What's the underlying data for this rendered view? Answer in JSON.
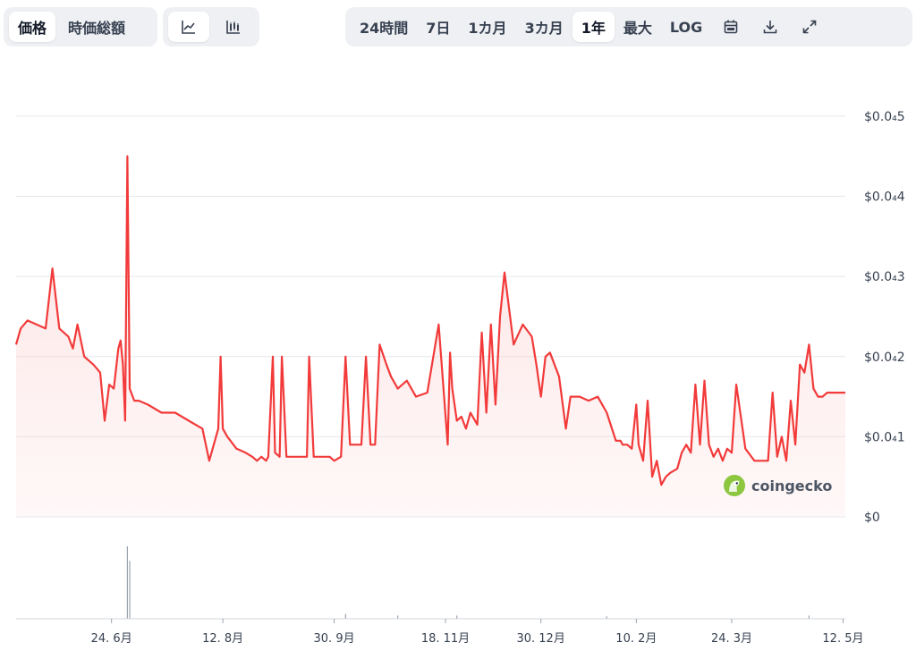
{
  "toolbar": {
    "metric_tabs": [
      {
        "label": "価格",
        "active": true
      },
      {
        "label": "時価総額",
        "active": false
      }
    ],
    "chart_type_icons": [
      "line-chart-icon",
      "candlestick-chart-icon"
    ],
    "range_tabs": [
      {
        "label": "24時間",
        "active": false
      },
      {
        "label": "7日",
        "active": false
      },
      {
        "label": "1カ月",
        "active": false
      },
      {
        "label": "3カ月",
        "active": false
      },
      {
        "label": "1年",
        "active": true
      },
      {
        "label": "最大",
        "active": false
      },
      {
        "label": "LOG",
        "active": false
      }
    ],
    "action_icons": [
      "calendar-icon",
      "download-icon",
      "fullscreen-icon"
    ]
  },
  "watermark": {
    "text": "coingecko"
  },
  "colors": {
    "line": "#f23a3a",
    "fill": "#fde8e8",
    "grid": "#e5e7eb",
    "accent_bg": "#eef0f3"
  },
  "chart_data": {
    "type": "line",
    "title": "",
    "xlabel": "",
    "ylabel": "",
    "y_tick_labels": [
      {
        "value": 5e-05,
        "label": "$0.0₄5"
      },
      {
        "value": 4e-05,
        "label": "$0.0₄4"
      },
      {
        "value": 3e-05,
        "label": "$0.0₄3"
      },
      {
        "value": 2e-05,
        "label": "$0.0₄2"
      },
      {
        "value": 1e-05,
        "label": "$0.0₄1"
      },
      {
        "value": 0,
        "label": "$0"
      }
    ],
    "ylim": [
      0,
      5.2e-05
    ],
    "x_tick_labels": [
      "24. 6月",
      "12. 8月",
      "30. 9月",
      "18. 11月",
      "30. 12月",
      "10. 2月",
      "24. 3月",
      "12. 5月"
    ],
    "x_tick_dates": [
      "2024-06-24",
      "2024-08-12",
      "2024-09-30",
      "2024-11-18",
      "2024-12-30",
      "2025-02-10",
      "2025-03-24",
      "2025-05-12"
    ],
    "x_range": [
      "2024-05-13",
      "2025-05-13"
    ],
    "series": [
      {
        "x": [
          "2024-05-13",
          "2024-05-15",
          "2024-05-18",
          "2024-05-22",
          "2024-05-26",
          "2024-05-29",
          "2024-06-01",
          "2024-06-05",
          "2024-06-07",
          "2024-06-09",
          "2024-06-12",
          "2024-06-14",
          "2024-06-16",
          "2024-06-19",
          "2024-06-21",
          "2024-06-23",
          "2024-06-25",
          "2024-06-27",
          "2024-06-28",
          "2024-06-29",
          "2024-06-30",
          "2024-07-01",
          "2024-07-02",
          "2024-07-04",
          "2024-07-06",
          "2024-07-10",
          "2024-07-16",
          "2024-07-22",
          "2024-07-28",
          "2024-08-03",
          "2024-08-06",
          "2024-08-10",
          "2024-08-11",
          "2024-08-12",
          "2024-08-14",
          "2024-08-18",
          "2024-08-22",
          "2024-08-25",
          "2024-08-27",
          "2024-08-29",
          "2024-08-31",
          "2024-09-01",
          "2024-09-03",
          "2024-09-04",
          "2024-09-06",
          "2024-09-07",
          "2024-09-09",
          "2024-09-16",
          "2024-09-18",
          "2024-09-19",
          "2024-09-21",
          "2024-09-28",
          "2024-09-30",
          "2024-10-03",
          "2024-10-05",
          "2024-10-07",
          "2024-10-12",
          "2024-10-14",
          "2024-10-16",
          "2024-10-18",
          "2024-10-20",
          "2024-10-23",
          "2024-10-25",
          "2024-10-28",
          "2024-11-01",
          "2024-11-05",
          "2024-11-10",
          "2024-11-15",
          "2024-11-19",
          "2024-11-20",
          "2024-11-21",
          "2024-11-23",
          "2024-11-25",
          "2024-11-27",
          "2024-11-29",
          "2024-12-02",
          "2024-12-04",
          "2024-12-06",
          "2024-12-08",
          "2024-12-10",
          "2024-12-12",
          "2024-12-14",
          "2024-12-18",
          "2024-12-22",
          "2024-12-26",
          "2024-12-28",
          "2024-12-30",
          "2025-01-01",
          "2025-01-03",
          "2025-01-07",
          "2025-01-10",
          "2025-01-12",
          "2025-01-16",
          "2025-01-20",
          "2025-01-24",
          "2025-01-28",
          "2025-02-01",
          "2025-02-03",
          "2025-02-04",
          "2025-02-06",
          "2025-02-08",
          "2025-02-10",
          "2025-02-11",
          "2025-02-13",
          "2025-02-15",
          "2025-02-17",
          "2025-02-19",
          "2025-02-21",
          "2025-02-23",
          "2025-02-25",
          "2025-02-28",
          "2025-03-02",
          "2025-03-04",
          "2025-03-06",
          "2025-03-08",
          "2025-03-10",
          "2025-03-12",
          "2025-03-14",
          "2025-03-16",
          "2025-03-18",
          "2025-03-20",
          "2025-03-22",
          "2025-03-24",
          "2025-03-26",
          "2025-03-30",
          "2025-04-03",
          "2025-04-07",
          "2025-04-09",
          "2025-04-11",
          "2025-04-13",
          "2025-04-15",
          "2025-04-17",
          "2025-04-19",
          "2025-04-21",
          "2025-04-23",
          "2025-04-25",
          "2025-04-27",
          "2025-04-29",
          "2025-05-01",
          "2025-05-03",
          "2025-05-05",
          "2025-05-07",
          "2025-05-09",
          "2025-05-13"
        ],
        "values": [
          2.15e-05,
          2.35e-05,
          2.45e-05,
          2.4e-05,
          2.35e-05,
          3.1e-05,
          2.35e-05,
          2.25e-05,
          2.1e-05,
          2.4e-05,
          2e-05,
          1.95e-05,
          1.9e-05,
          1.8e-05,
          1.2e-05,
          1.65e-05,
          1.6e-05,
          2.1e-05,
          2.2e-05,
          1.9e-05,
          1.2e-05,
          4.5e-05,
          1.6e-05,
          1.45e-05,
          1.45e-05,
          1.4e-05,
          1.3e-05,
          1.3e-05,
          1.2e-05,
          1.1e-05,
          7e-06,
          1.1e-05,
          2e-05,
          1.1e-05,
          1e-05,
          8.5e-06,
          8e-06,
          7.5e-06,
          7e-06,
          7.5e-06,
          7e-06,
          7.5e-06,
          2e-05,
          8e-06,
          7.5e-06,
          2e-05,
          7.5e-06,
          7.5e-06,
          7.5e-06,
          2e-05,
          7.5e-06,
          7.5e-06,
          7e-06,
          7.5e-06,
          2e-05,
          9e-06,
          9e-06,
          2e-05,
          9e-06,
          9e-06,
          2.15e-05,
          1.9e-05,
          1.75e-05,
          1.6e-05,
          1.7e-05,
          1.5e-05,
          1.55e-05,
          2.4e-05,
          9e-06,
          2.05e-05,
          1.6e-05,
          1.2e-05,
          1.25e-05,
          1.1e-05,
          1.3e-05,
          1.15e-05,
          2.3e-05,
          1.3e-05,
          2.4e-05,
          1.4e-05,
          2.5e-05,
          3.05e-05,
          2.15e-05,
          2.4e-05,
          2.25e-05,
          1.9e-05,
          1.5e-05,
          2e-05,
          2.05e-05,
          1.75e-05,
          1.1e-05,
          1.5e-05,
          1.5e-05,
          1.45e-05,
          1.5e-05,
          1.3e-05,
          9.5e-06,
          9.5e-06,
          9e-06,
          9e-06,
          8.5e-06,
          1.4e-05,
          9e-06,
          7e-06,
          1.45e-05,
          5e-06,
          7e-06,
          4e-06,
          5e-06,
          5.5e-06,
          6e-06,
          8e-06,
          9e-06,
          8e-06,
          1.65e-05,
          9e-06,
          1.7e-05,
          9e-06,
          7.5e-06,
          8.5e-06,
          7e-06,
          8.5e-06,
          8e-06,
          1.65e-05,
          8.5e-06,
          7e-06,
          7e-06,
          7e-06,
          1.55e-05,
          7.5e-06,
          1e-05,
          7e-06,
          1.45e-05,
          9e-06,
          1.9e-05,
          1.8e-05,
          2.15e-05,
          1.6e-05,
          1.5e-05,
          1.5e-05,
          1.55e-05,
          1.55e-05,
          1.55e-05,
          1.55e-05
        ],
        "volume": [
          {
            "x": "2024-07-01",
            "v": 0.9
          },
          {
            "x": "2024-07-02",
            "v": 0.72
          },
          {
            "x": "2024-10-05",
            "v": 0.06
          },
          {
            "x": "2024-10-28",
            "v": 0.04
          },
          {
            "x": "2024-11-23",
            "v": 0.04
          },
          {
            "x": "2025-01-28",
            "v": 0.03
          },
          {
            "x": "2025-04-27",
            "v": 0.04
          }
        ]
      }
    ]
  }
}
